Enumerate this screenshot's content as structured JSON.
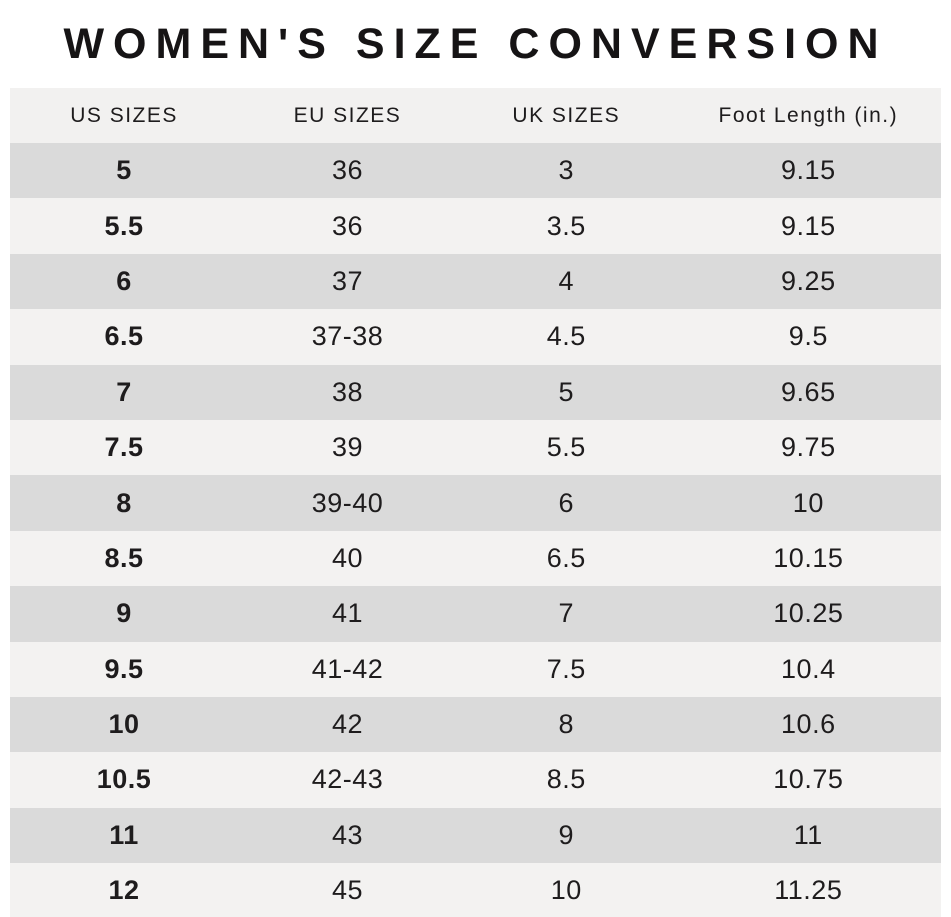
{
  "title": "WOMEN'S SIZE CONVERSION",
  "chart_data": {
    "type": "table",
    "title": "WOMEN'S SIZE CONVERSION",
    "columns": [
      "US SIZES",
      "EU SIZES",
      "UK SIZES",
      "Foot Length (in.)"
    ],
    "rows": [
      [
        "5",
        "36",
        "3",
        "9.15"
      ],
      [
        "5.5",
        "36",
        "3.5",
        "9.15"
      ],
      [
        "6",
        "37",
        "4",
        "9.25"
      ],
      [
        "6.5",
        "37-38",
        "4.5",
        "9.5"
      ],
      [
        "7",
        "38",
        "5",
        "9.65"
      ],
      [
        "7.5",
        "39",
        "5.5",
        "9.75"
      ],
      [
        "8",
        "39-40",
        "6",
        "10"
      ],
      [
        "8.5",
        "40",
        "6.5",
        "10.15"
      ],
      [
        "9",
        "41",
        "7",
        "10.25"
      ],
      [
        "9.5",
        "41-42",
        "7.5",
        "10.4"
      ],
      [
        "10",
        "42",
        "8",
        "10.6"
      ],
      [
        "10.5",
        "42-43",
        "8.5",
        "10.75"
      ],
      [
        "11",
        "43",
        "9",
        "11"
      ],
      [
        "12",
        "45",
        "10",
        "11.25"
      ]
    ],
    "layout_hints": {
      "row_striping": "first data row dark, alternating",
      "us_sizes_bold": true
    }
  },
  "colors": {
    "row_dark": "#dadada",
    "row_light": "#f3f2f1",
    "header_bg": "#f2f1f0",
    "text": "#1e1c1d",
    "title": "#161415",
    "page_bg": "#ffffff"
  }
}
